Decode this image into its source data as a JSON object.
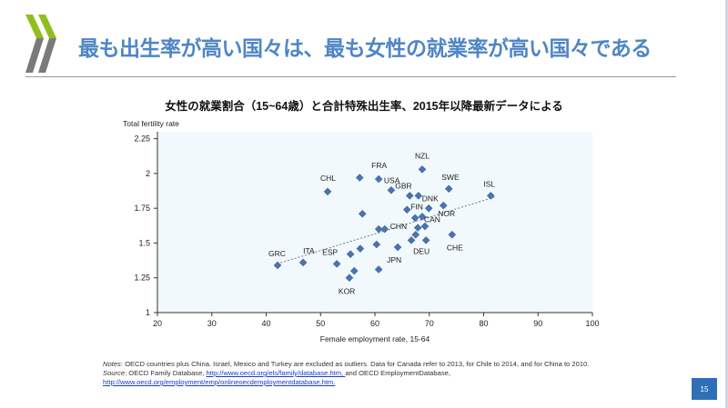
{
  "slide": {
    "title": "最も出生率が高い国々は、最も女性の就業率が高い国々である",
    "page_number": "15",
    "notes_label": "Notes",
    "notes_text": ": OECD countries plus China. Israel, Mexico and Turkey are excluded as outliers. Data for Canada refer to 2013, for Chile to 2014, and for China to 2010.",
    "source_label": "Source",
    "source_text1": ": OECD Family Database, ",
    "source_link1": "http://www.oecd.org/els/family/database.htm, ",
    "source_text2": "and OECD EmploymentDatabase,",
    "source_link2": "http://www.oecd.org/employment/emp/onlineoecdemploymentdatabase.htm."
  },
  "colors": {
    "title": "#4f86c6",
    "marker": "#4a74b0",
    "plot_bg": "#f1f9fd",
    "logo_green": "#8fbf1f",
    "logo_gray": "#7a7a7a"
  },
  "chart_data": {
    "type": "scatter",
    "title": "女性の就業割合（15~64歳）と合計特殊出生率、2015年以降最新データによる",
    "xlabel": "Female employment rate, 15-64",
    "ylabel": "Total fertility rate",
    "xlim": [
      20,
      100
    ],
    "ylim": [
      1,
      2.3
    ],
    "xticks": [
      "20",
      "30",
      "40",
      "50",
      "60",
      "70",
      "80",
      "90",
      "100"
    ],
    "yticks": [
      "1",
      "1.25",
      "1.5",
      "1.75",
      "2",
      "2.25"
    ],
    "trendline": {
      "x": [
        42,
        82
      ],
      "y": [
        1.35,
        1.83
      ]
    },
    "points": [
      {
        "label": "GRC",
        "x": 42.1,
        "y": 1.34
      },
      {
        "label": "ITA",
        "x": 46.8,
        "y": 1.36
      },
      {
        "label": "ESP",
        "x": 53.0,
        "y": 1.35
      },
      {
        "label": "",
        "x": 55.5,
        "y": 1.42
      },
      {
        "label": "KOR",
        "x": 55.3,
        "y": 1.25
      },
      {
        "label": "",
        "x": 56.2,
        "y": 1.3
      },
      {
        "label": "",
        "x": 57.3,
        "y": 1.46
      },
      {
        "label": "",
        "x": 57.7,
        "y": 1.71
      },
      {
        "label": "",
        "x": 57.2,
        "y": 1.97
      },
      {
        "label": "CHL",
        "x": 51.3,
        "y": 1.87
      },
      {
        "label": "FRA",
        "x": 60.7,
        "y": 1.96
      },
      {
        "label": "",
        "x": 60.7,
        "y": 1.6
      },
      {
        "label": "",
        "x": 60.3,
        "y": 1.49
      },
      {
        "label": "",
        "x": 60.7,
        "y": 1.31
      },
      {
        "label": "CHN",
        "x": 61.8,
        "y": 1.6
      },
      {
        "label": "USA",
        "x": 63.0,
        "y": 1.88
      },
      {
        "label": "JPN",
        "x": 64.2,
        "y": 1.47
      },
      {
        "label": "NZL",
        "x": 68.7,
        "y": 2.03
      },
      {
        "label": "GBR",
        "x": 66.4,
        "y": 1.84
      },
      {
        "label": "DNK",
        "x": 68.0,
        "y": 1.84
      },
      {
        "label": "FIN",
        "x": 65.9,
        "y": 1.74
      },
      {
        "label": "",
        "x": 69.9,
        "y": 1.75
      },
      {
        "label": "",
        "x": 67.4,
        "y": 1.68
      },
      {
        "label": "CAN",
        "x": 68.7,
        "y": 1.69
      },
      {
        "label": "",
        "x": 67.9,
        "y": 1.61
      },
      {
        "label": "",
        "x": 69.2,
        "y": 1.62
      },
      {
        "label": "",
        "x": 67.5,
        "y": 1.56
      },
      {
        "label": "",
        "x": 66.7,
        "y": 1.52
      },
      {
        "label": "DEU",
        "x": 69.4,
        "y": 1.52
      },
      {
        "label": "NOR",
        "x": 72.6,
        "y": 1.77
      },
      {
        "label": "SWE",
        "x": 73.6,
        "y": 1.89
      },
      {
        "label": "CHE",
        "x": 74.2,
        "y": 1.56
      },
      {
        "label": "ISL",
        "x": 81.3,
        "y": 1.84
      }
    ]
  }
}
